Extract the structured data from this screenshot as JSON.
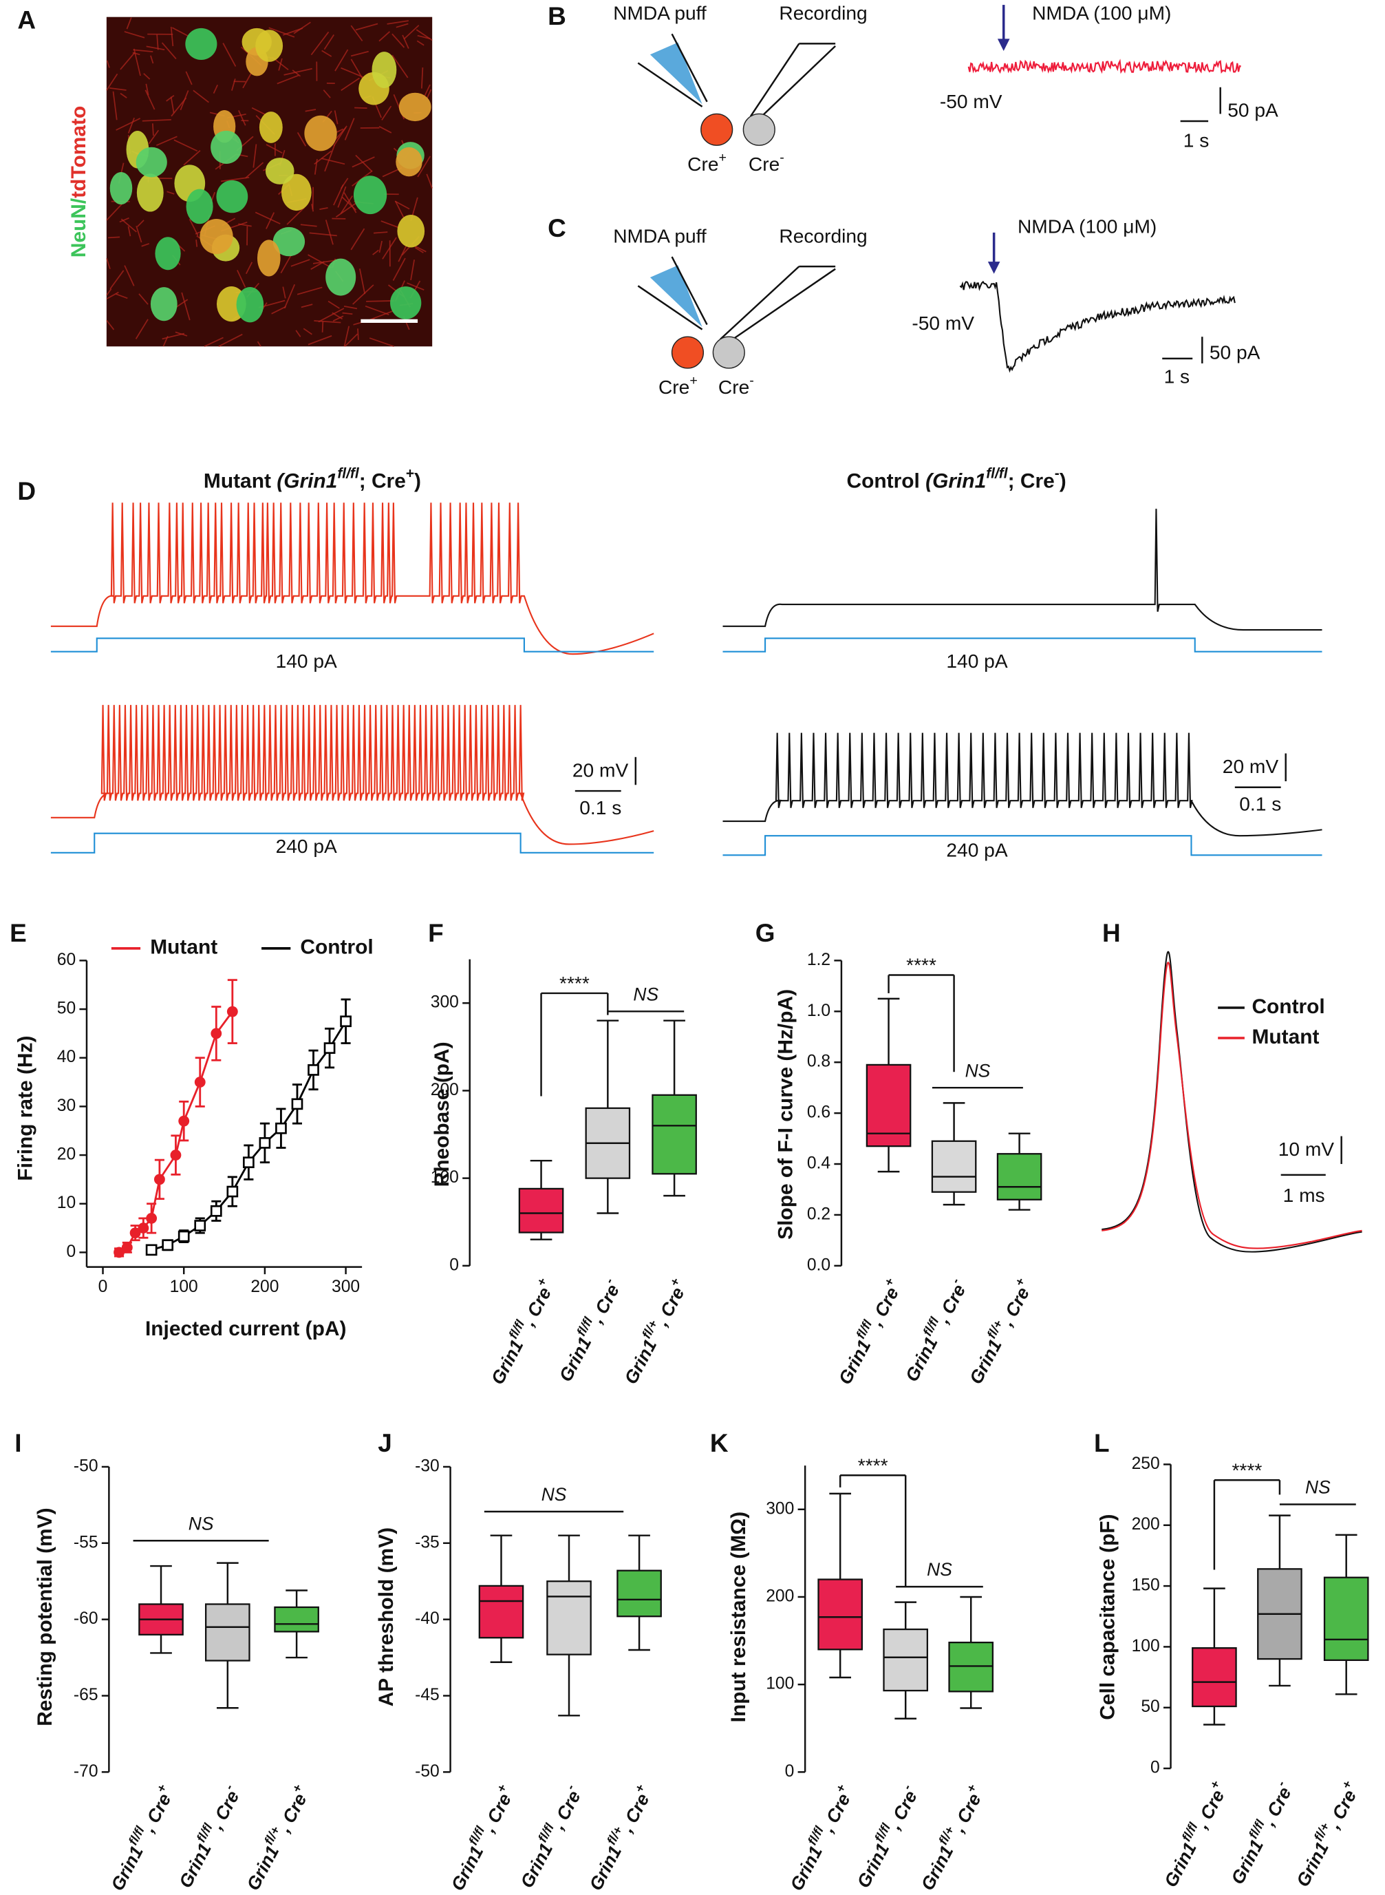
{
  "panel_labels": [
    "A",
    "B",
    "C",
    "D",
    "E",
    "F",
    "G",
    "H",
    "I",
    "J",
    "K",
    "L"
  ],
  "panel_a": {
    "label_parts": [
      "NeuN",
      "/",
      "tdTomato"
    ]
  },
  "panel_b": {
    "puff": "NMDA puff",
    "recording": "Recording",
    "cells": [
      [
        "Cre",
        "+"
      ],
      [
        "Cre",
        "-"
      ]
    ],
    "drug": "NMDA (100 μM)",
    "holding": "-50 mV",
    "scale": [
      "50 pA",
      "1 s"
    ]
  },
  "panel_c": {
    "puff": "NMDA puff",
    "recording": "Recording",
    "cells": [
      [
        "Cre",
        "+"
      ],
      [
        "Cre",
        "-"
      ]
    ],
    "drug": "NMDA (100 μM)",
    "holding": "-50 mV",
    "scale": [
      "50 pA",
      "1 s"
    ]
  },
  "panel_d": {
    "titles": [
      [
        "Mutant ",
        "(Grin1",
        "fl/fl",
        "; Cre",
        "+",
        ")"
      ],
      [
        "Control ",
        "(Grin1",
        "fl/fl",
        "; Cre",
        "-",
        ")"
      ]
    ],
    "currents": [
      "140 pA",
      "240 pA"
    ],
    "scale": [
      "20 mV",
      "0.1 s"
    ]
  },
  "panel_h": {
    "legend": [
      "Control",
      "Mutant"
    ],
    "scale": [
      "10 mV",
      "1 ms"
    ]
  },
  "chart_data": [
    {
      "type": "line",
      "xlabel": "Injected current (pA)",
      "ylabel": "Firing rate (Hz)",
      "xlim": [
        -20,
        320
      ],
      "xticks": [
        0,
        100,
        200,
        300
      ],
      "ylim": [
        -3,
        60
      ],
      "yticks": [
        0,
        10,
        20,
        30,
        40,
        50,
        60
      ],
      "series": [
        {
          "name": "Mutant",
          "color": "#e8202a",
          "marker": "circle",
          "x": [
            20,
            30,
            40,
            50,
            60,
            70,
            90,
            100,
            120,
            140,
            160
          ],
          "values": [
            0,
            1,
            4,
            5,
            7,
            15,
            20,
            27,
            35,
            45,
            49.5
          ],
          "errors": [
            0.8,
            1,
            1.5,
            2,
            3,
            4,
            4,
            4,
            5,
            5.5,
            6.5
          ]
        },
        {
          "name": "Control",
          "color": "#000000",
          "marker": "square",
          "x": [
            60,
            80,
            100,
            120,
            140,
            160,
            180,
            200,
            220,
            240,
            260,
            280,
            300
          ],
          "values": [
            0.5,
            1.5,
            3.3,
            5.5,
            8.5,
            12.5,
            18.5,
            22.5,
            25.5,
            30.5,
            37.5,
            42,
            47.5
          ],
          "errors": [
            0.5,
            1,
            1.2,
            1.5,
            2,
            3,
            3.5,
            4,
            4,
            4,
            4,
            4,
            4.5
          ]
        }
      ]
    },
    {
      "type": "box",
      "ylabel": "Rheobase (pA)",
      "ylim": [
        0,
        350
      ],
      "yticks": [
        0,
        100,
        200,
        300
      ],
      "categories": [
        [
          "Grin1",
          "fl/fl",
          ", Cre",
          "+"
        ],
        [
          "Grin1",
          "fl/fl",
          ", Cre",
          "-"
        ],
        [
          "Grin1",
          "fl/+",
          ", Cre",
          "+"
        ]
      ],
      "boxes": [
        {
          "color": "#e8214f",
          "min": 30,
          "q1": 38,
          "median": 60,
          "q3": 88,
          "max": 120
        },
        {
          "color": "#d4d4d4",
          "min": 60,
          "q1": 100,
          "median": 140,
          "q3": 180,
          "max": 280
        },
        {
          "color": "#4cb848",
          "min": 80,
          "q1": 105,
          "median": 160,
          "q3": 195,
          "max": 280
        }
      ],
      "annotations": [
        "****",
        "NS"
      ]
    },
    {
      "type": "box",
      "ylabel": "Slope of F-I curve (Hz/pA)",
      "ylim": [
        0,
        1.2
      ],
      "yticks": [
        {
          "value": 0,
          "label": "0.0"
        },
        0.2,
        0.4,
        0.6,
        0.8,
        {
          "value": 1,
          "label": "1.0"
        },
        1.2
      ],
      "categories": [
        [
          "Grin1",
          "fl/fl",
          ", Cre",
          "+"
        ],
        [
          "Grin1",
          "fl/fl",
          ", Cre",
          "-"
        ],
        [
          "Grin1",
          "fl/+",
          ", Cre",
          "+"
        ]
      ],
      "boxes": [
        {
          "color": "#e8214f",
          "min": 0.37,
          "q1": 0.47,
          "median": 0.52,
          "q3": 0.79,
          "max": 1.05
        },
        {
          "color": "#d9d9d9",
          "min": 0.24,
          "q1": 0.29,
          "median": 0.35,
          "q3": 0.49,
          "max": 0.64
        },
        {
          "color": "#4cb848",
          "min": 0.22,
          "q1": 0.26,
          "median": 0.31,
          "q3": 0.44,
          "max": 0.52
        }
      ],
      "annotations": [
        "****",
        "NS"
      ]
    },
    {
      "type": "box",
      "ylabel": "Resting potential (mV)",
      "ylim": [
        -70,
        -50
      ],
      "yticks": [
        -70,
        -65,
        -60,
        -55,
        -50
      ],
      "categories": [
        [
          "Grin1",
          "fl/fl",
          ", Cre",
          "+"
        ],
        [
          "Grin1",
          "fl/fl",
          ", Cre",
          "-"
        ],
        [
          "Grin1",
          "fl/+",
          ", Cre",
          "+"
        ]
      ],
      "boxes": [
        {
          "color": "#e8214f",
          "min": -62.2,
          "q1": -61,
          "median": -60,
          "q3": -59,
          "max": -56.5
        },
        {
          "color": "#c8c8c8",
          "min": -65.8,
          "q1": -62.7,
          "median": -60.5,
          "q3": -59,
          "max": -56.3
        },
        {
          "color": "#4cb848",
          "min": -62.5,
          "q1": -60.8,
          "median": -60.3,
          "q3": -59.2,
          "max": -58.1
        }
      ],
      "annotations": [
        "NS"
      ]
    },
    {
      "type": "box",
      "ylabel": "AP threshold (mV)",
      "ylim": [
        -50,
        -30
      ],
      "yticks": [
        -50,
        -45,
        -40,
        -35,
        -30
      ],
      "categories": [
        [
          "Grin1",
          "fl/fl",
          ", Cre",
          "+"
        ],
        [
          "Grin1",
          "fl/fl",
          ", Cre",
          "-"
        ],
        [
          "Grin1",
          "fl/+",
          ", Cre",
          "+"
        ]
      ],
      "boxes": [
        {
          "color": "#e8214f",
          "min": -42.8,
          "q1": -41.2,
          "median": -38.8,
          "q3": -37.8,
          "max": -34.5
        },
        {
          "color": "#d4d4d4",
          "min": -46.3,
          "q1": -42.3,
          "median": -38.5,
          "q3": -37.5,
          "max": -34.5
        },
        {
          "color": "#4cb848",
          "min": -42,
          "q1": -39.8,
          "median": -38.7,
          "q3": -36.8,
          "max": -34.5
        }
      ],
      "annotations": [
        "NS"
      ]
    },
    {
      "type": "box",
      "ylabel": "Input resistance (MΩ)",
      "ylim": [
        0,
        350
      ],
      "yticks": [
        0,
        100,
        200,
        300
      ],
      "categories": [
        [
          "Grin1",
          "fl/fl",
          ", Cre",
          "+"
        ],
        [
          "Grin1",
          "fl/fl",
          ", Cre",
          "-"
        ],
        [
          "Grin1",
          "fl/+",
          ", Cre",
          "+"
        ]
      ],
      "boxes": [
        {
          "color": "#e8214f",
          "min": 108,
          "q1": 140,
          "median": 177,
          "q3": 220,
          "max": 318
        },
        {
          "color": "#d4d4d4",
          "min": 61,
          "q1": 93,
          "median": 131,
          "q3": 163,
          "max": 194
        },
        {
          "color": "#4cb848",
          "min": 73,
          "q1": 92,
          "median": 121,
          "q3": 148,
          "max": 200
        }
      ],
      "annotations": [
        "****",
        "NS"
      ]
    },
    {
      "type": "box",
      "ylabel": "Cell capacitance (pF)",
      "ylim": [
        0,
        250
      ],
      "yticks": [
        0,
        50,
        100,
        150,
        200,
        250
      ],
      "categories": [
        [
          "Grin1",
          "fl/fl",
          ", Cre",
          "+"
        ],
        [
          "Grin1",
          "fl/fl",
          ", Cre",
          "-"
        ],
        [
          "Grin1",
          "fl/+",
          ", Cre",
          "+"
        ]
      ],
      "boxes": [
        {
          "color": "#e8214f",
          "min": 36,
          "q1": 51,
          "median": 71,
          "q3": 99,
          "max": 148
        },
        {
          "color": "#a9a9a9",
          "min": 68,
          "q1": 90,
          "median": 127,
          "q3": 164,
          "max": 208
        },
        {
          "color": "#4cb848",
          "min": 61,
          "q1": 89,
          "median": 106,
          "q3": 157,
          "max": 192
        }
      ],
      "annotations": [
        "****",
        "NS"
      ]
    }
  ]
}
